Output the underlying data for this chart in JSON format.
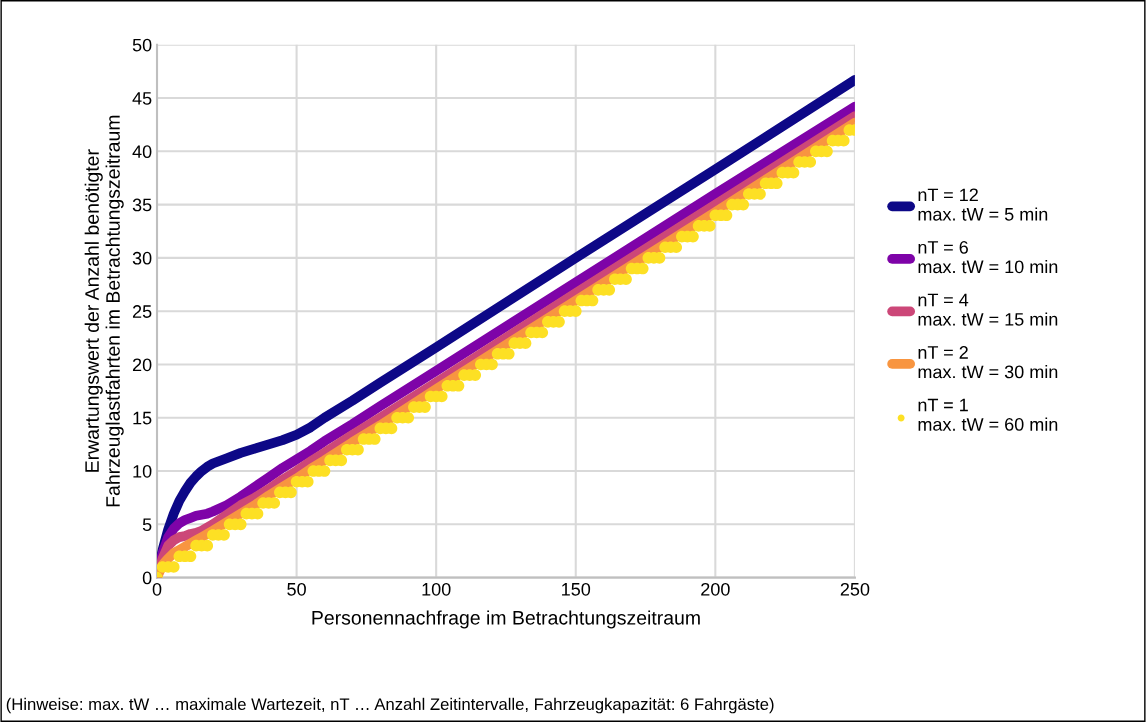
{
  "chart_data": {
    "type": "line",
    "xlabel": "Personennachfrage im Betrachtungszeitraum",
    "ylabel": "Erwartungswert der Anzahl benötigter\nFahrzeuglastfahrten im Betrachtungszeitraum",
    "annotations": [
      "(Hinweise: max. tW … maximale Wartezeit, nT … Anzahl Zeitintervalle, Fahrzeugkapazität: 6 Fahrgäste)"
    ],
    "xlim": [
      0,
      250
    ],
    "xticks": [
      0,
      50,
      100,
      150,
      200,
      250
    ],
    "ylim": [
      0,
      50
    ],
    "yticks": [
      0,
      5,
      10,
      15,
      20,
      25,
      30,
      35,
      40,
      45,
      50
    ],
    "grid": true,
    "legend": "right",
    "series": [
      {
        "name": "nT = 12\nmax. tW = 5 min",
        "color": "#0d0887",
        "x": [
          0,
          2,
          4,
          6,
          8,
          10,
          12,
          14,
          16,
          18,
          20,
          25,
          30,
          35,
          40,
          45,
          50,
          55,
          60,
          70,
          80,
          100,
          150,
          200,
          250
        ],
        "values": [
          0,
          2.6,
          4.5,
          6.0,
          7.2,
          8.1,
          8.9,
          9.5,
          10.0,
          10.4,
          10.7,
          11.2,
          11.7,
          12.1,
          12.5,
          12.9,
          13.4,
          14.1,
          15.0,
          16.6,
          18.3,
          21.6,
          30.0,
          38.3,
          46.7
        ]
      },
      {
        "name": "nT = 6\nmax. tW = 10 min",
        "color": "#7e03a8",
        "x": [
          0,
          2,
          4,
          6,
          8,
          10,
          12,
          14,
          16,
          18,
          20,
          25,
          30,
          35,
          40,
          45,
          50,
          55,
          60,
          70,
          80,
          100,
          150,
          200,
          250
        ],
        "values": [
          0,
          2.3,
          3.8,
          4.6,
          5.1,
          5.4,
          5.6,
          5.8,
          5.9,
          6.0,
          6.2,
          6.8,
          7.6,
          8.5,
          9.4,
          10.3,
          11.1,
          11.9,
          12.8,
          14.4,
          16.1,
          19.4,
          27.7,
          36.0,
          44.2
        ]
      },
      {
        "name": "nT = 4\nmax. tW = 15 min",
        "color": "#cc4778",
        "x": [
          0,
          2,
          4,
          6,
          8,
          10,
          12,
          14,
          16,
          18,
          20,
          25,
          30,
          35,
          40,
          45,
          50,
          55,
          60,
          70,
          80,
          100,
          150,
          200,
          250
        ],
        "values": [
          0,
          1.8,
          3.0,
          3.5,
          3.8,
          3.9,
          4.1,
          4.2,
          4.4,
          4.7,
          5.0,
          5.9,
          6.8,
          7.5,
          8.3,
          9.2,
          10.0,
          10.9,
          11.7,
          13.4,
          15.0,
          18.3,
          26.7,
          35.0,
          43.3
        ]
      },
      {
        "name": "nT = 2\nmax. tW = 30 min",
        "color": "#f89540",
        "x": [
          0,
          2,
          4,
          6,
          8,
          10,
          12,
          14,
          16,
          18,
          20,
          25,
          30,
          35,
          40,
          45,
          50,
          55,
          60,
          70,
          80,
          100,
          150,
          200,
          250
        ],
        "values": [
          0,
          1.2,
          1.8,
          2.3,
          2.6,
          2.9,
          3.2,
          3.5,
          3.8,
          4.1,
          4.4,
          5.2,
          6.0,
          6.8,
          7.7,
          8.5,
          9.3,
          10.2,
          11.0,
          12.7,
          14.3,
          17.7,
          26.0,
          34.3,
          42.7
        ]
      },
      {
        "name": "nT = 1\nmax. tW = 60 min",
        "color": "#fde024",
        "type": "scatter",
        "x": [
          0,
          2,
          4,
          6,
          8,
          10,
          12,
          14,
          16,
          18,
          20,
          22,
          24,
          26,
          28,
          30,
          32,
          34,
          36,
          38,
          40,
          42,
          44,
          46,
          48,
          50,
          52,
          54,
          56,
          58,
          60,
          62,
          64,
          66,
          68,
          70,
          72,
          74,
          76,
          78,
          80,
          82,
          84,
          86,
          88,
          90,
          92,
          94,
          96,
          98,
          100,
          102,
          104,
          106,
          108,
          110,
          112,
          114,
          116,
          118,
          120,
          122,
          124,
          126,
          128,
          130,
          132,
          134,
          136,
          138,
          140,
          142,
          144,
          146,
          148,
          150,
          152,
          154,
          156,
          158,
          160,
          162,
          164,
          166,
          168,
          170,
          172,
          174,
          176,
          178,
          180,
          182,
          184,
          186,
          188,
          190,
          192,
          194,
          196,
          198,
          200,
          202,
          204,
          206,
          208,
          210,
          212,
          214,
          216,
          218,
          220,
          222,
          224,
          226,
          228,
          230,
          232,
          234,
          236,
          238,
          240,
          242,
          244,
          246,
          248,
          250
        ],
        "values": [
          0,
          1,
          1,
          1,
          2,
          2,
          2,
          3,
          3,
          3,
          4,
          4,
          4,
          5,
          5,
          5,
          6,
          6,
          6,
          7,
          7,
          7,
          8,
          8,
          8,
          9,
          9,
          9,
          10,
          10,
          10,
          11,
          11,
          11,
          12,
          12,
          12,
          13,
          13,
          13,
          14,
          14,
          14,
          15,
          15,
          15,
          16,
          16,
          16,
          17,
          17,
          17,
          18,
          18,
          18,
          19,
          19,
          19,
          20,
          20,
          20,
          21,
          21,
          21,
          22,
          22,
          22,
          23,
          23,
          23,
          24,
          24,
          24,
          25,
          25,
          25,
          26,
          26,
          26,
          27,
          27,
          27,
          28,
          28,
          28,
          29,
          29,
          29,
          30,
          30,
          30,
          31,
          31,
          31,
          32,
          32,
          32,
          33,
          33,
          33,
          34,
          34,
          34,
          35,
          35,
          35,
          36,
          36,
          36,
          37,
          37,
          37,
          38,
          38,
          38,
          39,
          39,
          39,
          40,
          40,
          40,
          41,
          41,
          41,
          42,
          42
        ]
      }
    ]
  }
}
